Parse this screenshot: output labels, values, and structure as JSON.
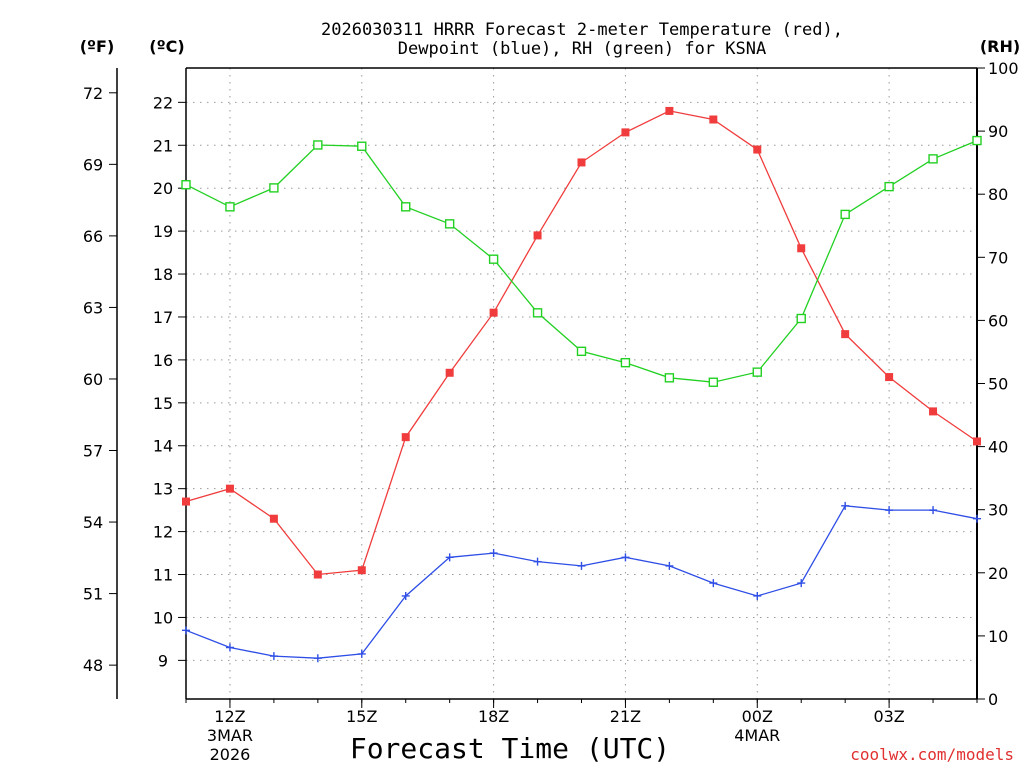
{
  "chart_data": {
    "type": "line",
    "title_line1": "2026030311 HRRR Forecast 2-meter Temperature (red),",
    "title_line2": "Dewpoint (blue), RH (green) for KSNA",
    "xlabel": "Forecast Time (UTC)",
    "unit_f": "(ºF)",
    "unit_c": "(ºC)",
    "unit_rh": "(RH)",
    "credit": "coolwx.com/models",
    "hours": [
      11,
      12,
      13,
      14,
      15,
      16,
      17,
      18,
      19,
      20,
      21,
      22,
      23,
      24,
      25,
      26,
      27,
      28,
      29
    ],
    "x_ticks": [
      {
        "hour": 12,
        "label": "12Z",
        "sub1": "3MAR",
        "sub2": "2026"
      },
      {
        "hour": 15,
        "label": "15Z",
        "sub1": "",
        "sub2": ""
      },
      {
        "hour": 18,
        "label": "18Z",
        "sub1": "",
        "sub2": ""
      },
      {
        "hour": 21,
        "label": "21Z",
        "sub1": "",
        "sub2": ""
      },
      {
        "hour": 24,
        "label": "00Z",
        "sub1": "4MAR",
        "sub2": ""
      },
      {
        "hour": 27,
        "label": "03Z",
        "sub1": "",
        "sub2": ""
      }
    ],
    "xlim": [
      11,
      29
    ],
    "ylim_c": [
      8.1,
      22.8
    ],
    "ylim_f": [
      46.58,
      73.04
    ],
    "ylim_rh": [
      0,
      100
    ],
    "yticks_c": [
      9,
      10,
      11,
      12,
      13,
      14,
      15,
      16,
      17,
      18,
      19,
      20,
      21,
      22
    ],
    "yticks_f": [
      48,
      51,
      54,
      57,
      60,
      63,
      66,
      69,
      72
    ],
    "yticks_rh": [
      0,
      10,
      20,
      30,
      40,
      50,
      60,
      70,
      80,
      90,
      100
    ],
    "series": [
      {
        "name": "Temperature",
        "unit": "C",
        "color": "#f03c3c",
        "marker": "filled-square",
        "values": [
          12.7,
          13.0,
          12.3,
          11.0,
          11.1,
          14.2,
          15.7,
          17.1,
          18.9,
          20.6,
          21.3,
          21.8,
          21.6,
          20.9,
          18.6,
          16.6,
          15.6,
          14.8,
          14.1
        ]
      },
      {
        "name": "Dewpoint",
        "unit": "C",
        "color": "#2e4ee6",
        "marker": "plus",
        "values": [
          9.7,
          9.3,
          9.1,
          9.05,
          9.15,
          10.5,
          11.4,
          11.5,
          11.3,
          11.2,
          11.4,
          11.2,
          10.8,
          10.5,
          10.8,
          12.6,
          12.5,
          12.5,
          12.3
        ]
      },
      {
        "name": "RH",
        "unit": "%",
        "color": "#22d022",
        "marker": "open-square",
        "values": [
          81.5,
          78.0,
          81.0,
          87.8,
          87.6,
          78.0,
          75.3,
          69.7,
          61.2,
          55.1,
          53.3,
          50.9,
          50.2,
          51.8,
          60.3,
          76.8,
          81.2,
          85.6,
          88.5
        ]
      }
    ]
  }
}
